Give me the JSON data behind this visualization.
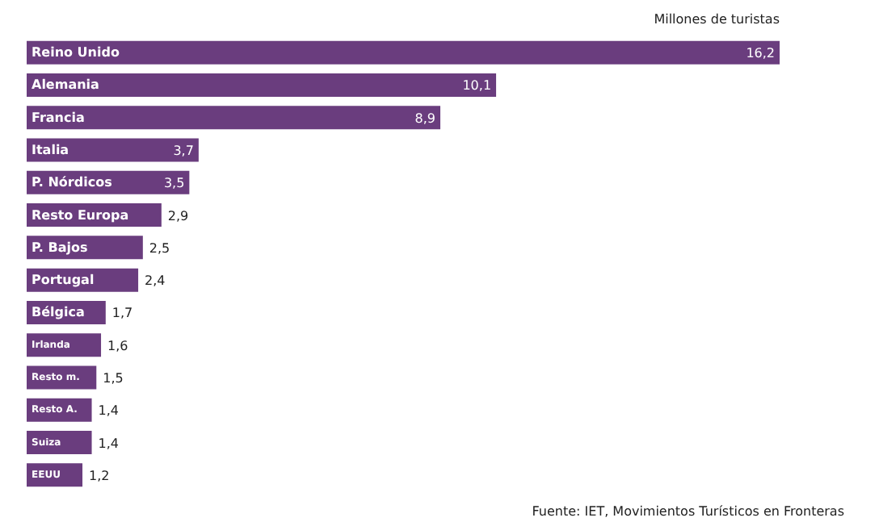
{
  "chart_data": {
    "type": "bar",
    "orientation": "horizontal",
    "title": "Millones de turistas",
    "categories": [
      "Reino Unido",
      "Alemania",
      "Francia",
      "Italia",
      "P. Nórdicos",
      "Resto Europa",
      "P. Bajos",
      "Portugal",
      "Bélgica",
      "Irlanda",
      "Resto m.",
      "Resto A.",
      "Suiza",
      "EEUU"
    ],
    "values": [
      16.2,
      10.1,
      8.9,
      3.7,
      3.5,
      2.9,
      2.5,
      2.4,
      1.7,
      1.6,
      1.5,
      1.4,
      1.4,
      1.2
    ],
    "value_labels": [
      "16,2",
      "10,1",
      "8,9",
      "3,7",
      "3,5",
      "2,9",
      "2,5",
      "2,4",
      "1,7",
      "1,6",
      "1,5",
      "1,4",
      "1,4",
      "1,2"
    ],
    "color": "#6a3d7e",
    "grid": false,
    "annotations": [
      "Fuente: IET, Movimientos Turísticos en Fronteras"
    ]
  }
}
